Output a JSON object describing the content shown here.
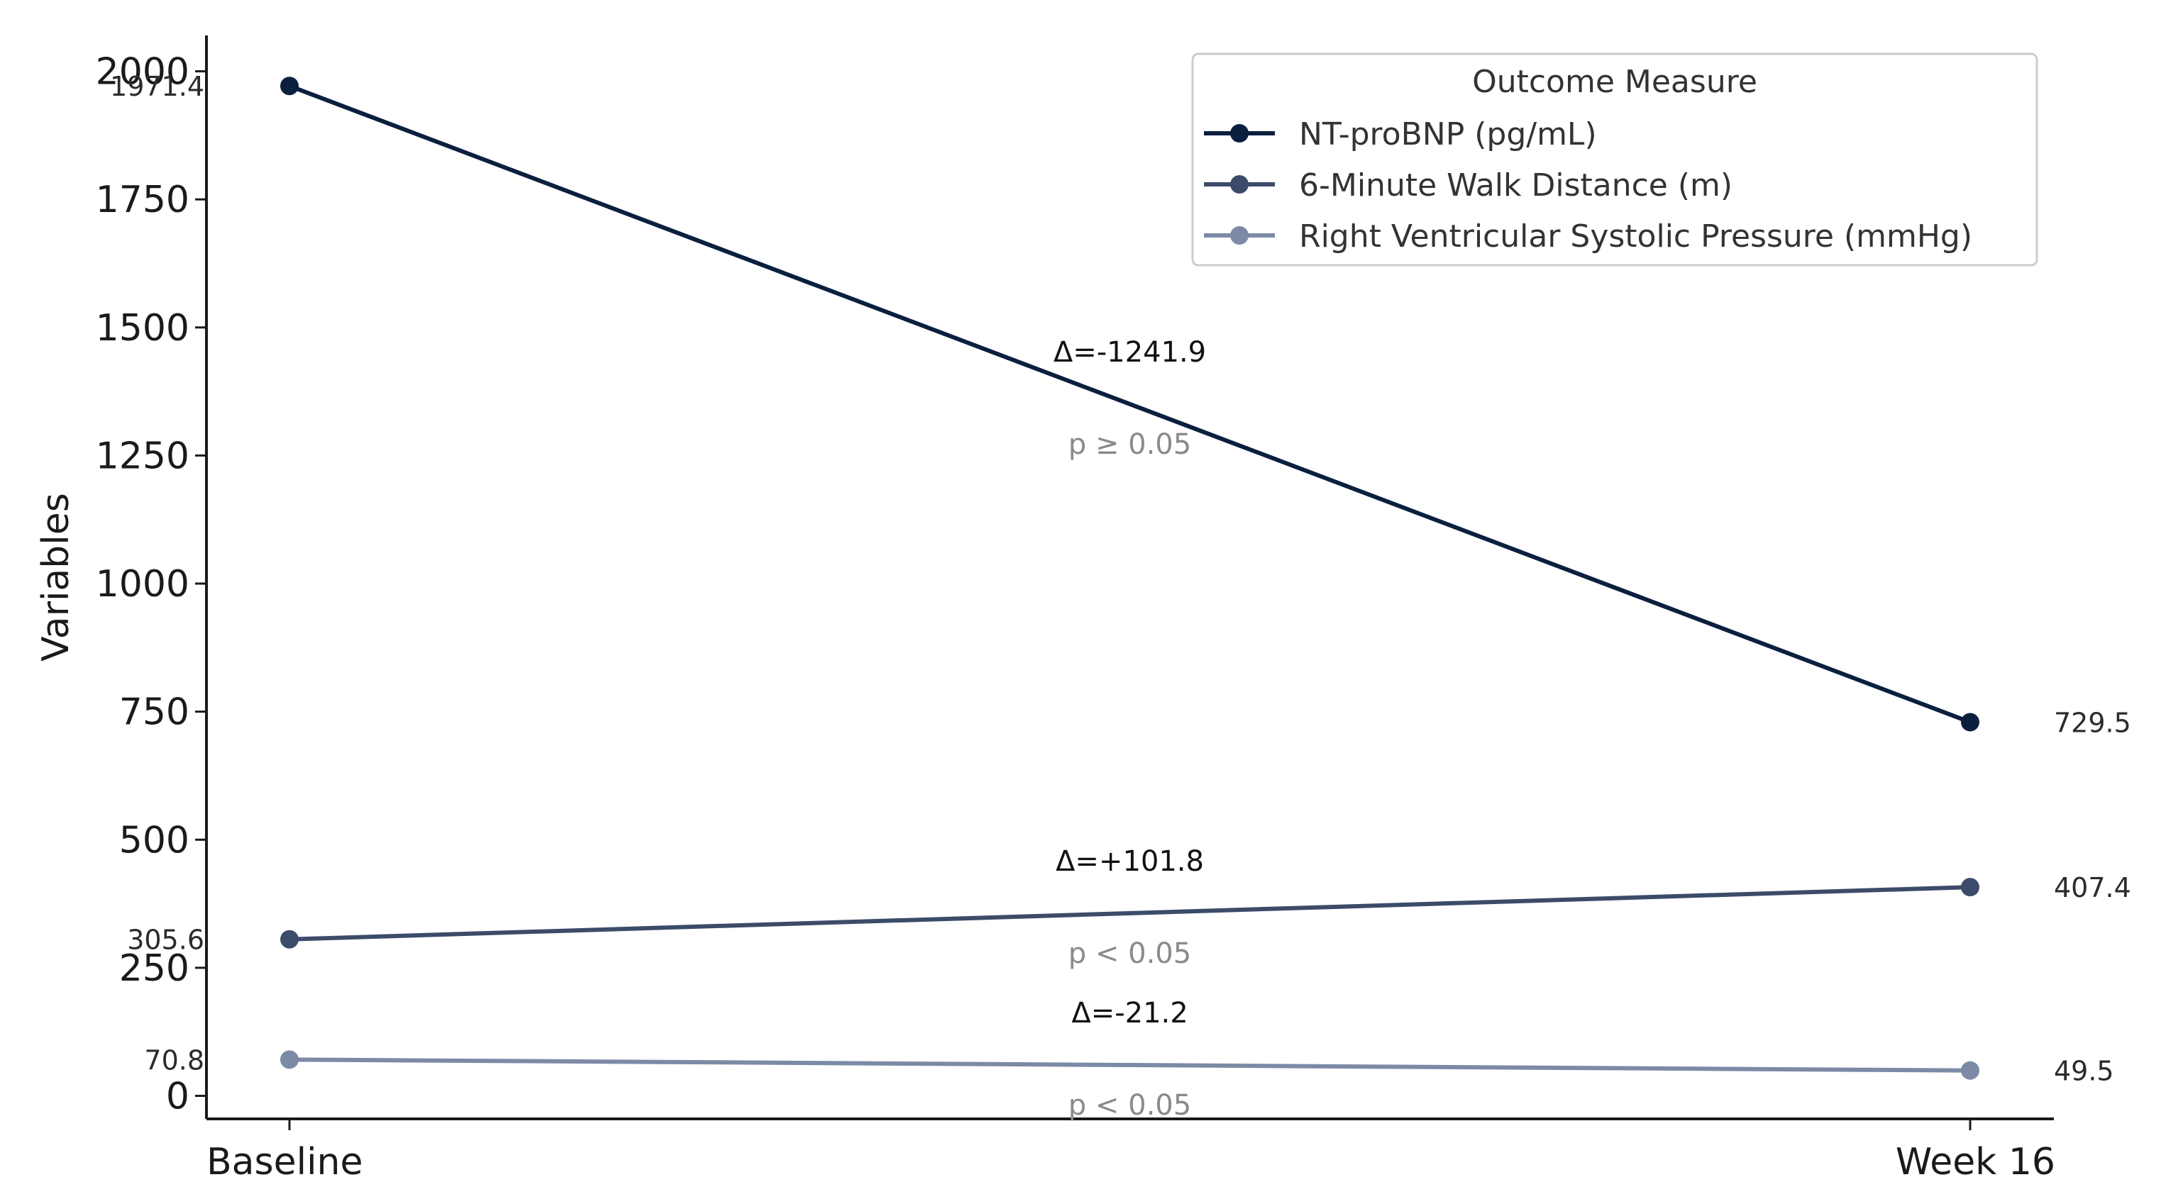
{
  "chart_data": {
    "type": "line",
    "categories": [
      "Baseline",
      "Week 16"
    ],
    "ylabel": "Variables",
    "ylim": [
      -45,
      2070
    ],
    "yticks": [
      0,
      250,
      500,
      750,
      1000,
      1250,
      1500,
      1750,
      2000
    ],
    "ytick_labels": [
      "0",
      "250",
      "500",
      "750",
      "1000",
      "1250",
      "1500",
      "1750",
      "2000"
    ],
    "grid": false,
    "legend": {
      "title": "Outcome Measure",
      "placement": "top-right"
    },
    "series": [
      {
        "name": "NT-proBNP (pg/mL)",
        "values": [
          1971.4,
          729.5
        ],
        "value_labels": [
          "1971.4",
          "729.5"
        ],
        "color": "#0b1f3f",
        "delta_label": "Δ=-1241.9",
        "p_label": "p ≥ 0.05"
      },
      {
        "name": "6-Minute Walk Distance (m)",
        "values": [
          305.6,
          407.4
        ],
        "value_labels": [
          "305.6",
          "407.4"
        ],
        "color": "#3c4b6a",
        "delta_label": "Δ=+101.8",
        "p_label": "p < 0.05"
      },
      {
        "name": "Right Ventricular Systolic Pressure (mmHg)",
        "values": [
          70.8,
          49.5
        ],
        "value_labels": [
          "70.8",
          "49.5"
        ],
        "color": "#7c8aa5",
        "delta_label": "Δ=-21.2",
        "p_label": "p < 0.05"
      }
    ]
  }
}
